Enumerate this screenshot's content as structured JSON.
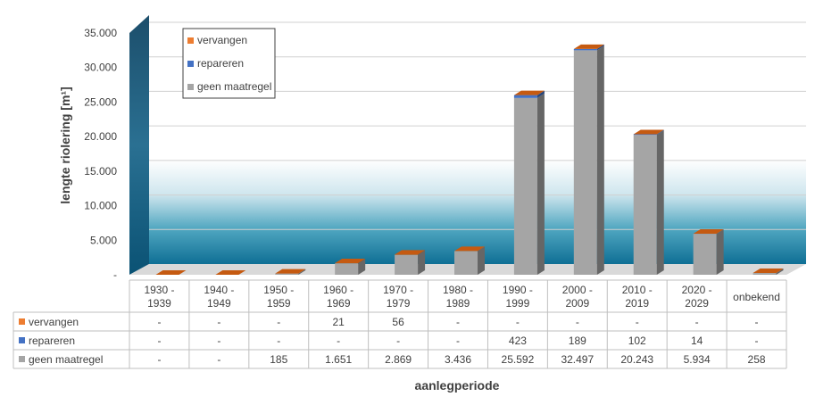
{
  "chart_data": {
    "type": "bar",
    "stacked": true,
    "three_d": true,
    "categories": [
      "1930 -\n1939",
      "1940 -\n1949",
      "1950 -\n1959",
      "1960 -\n1969",
      "1970 -\n1979",
      "1980 -\n1989",
      "1990 -\n1999",
      "2000 -\n2009",
      "2010 -\n2019",
      "2020 -\n2029",
      "onbekend"
    ],
    "series": [
      {
        "name": "vervangen",
        "color": "#ED7D31",
        "values": [
          null,
          null,
          null,
          21,
          56,
          null,
          null,
          null,
          null,
          null,
          null
        ],
        "labels": [
          "-",
          "-",
          "-",
          "21",
          "56",
          "-",
          "-",
          "-",
          "-",
          "-",
          "-"
        ]
      },
      {
        "name": "repareren",
        "color": "#4472C4",
        "values": [
          null,
          null,
          null,
          null,
          null,
          null,
          423,
          189,
          102,
          14,
          null
        ],
        "labels": [
          "-",
          "-",
          "-",
          "-",
          "-",
          "-",
          "423",
          "189",
          "102",
          "14",
          "-"
        ]
      },
      {
        "name": "geen maatregel",
        "color": "#A5A5A5",
        "values": [
          null,
          null,
          185,
          1651,
          2869,
          3436,
          25592,
          32497,
          20243,
          5934,
          258
        ],
        "labels": [
          "-",
          "-",
          "185",
          "1.651",
          "2.869",
          "3.436",
          "25.592",
          "32.497",
          "20.243",
          "5.934",
          "258"
        ]
      }
    ],
    "ylabel": "lengte riolering [m¹]",
    "xlabel": "aanlegperiode",
    "ylim": [
      0,
      35000
    ],
    "yticks": [
      0,
      5000,
      10000,
      15000,
      20000,
      25000,
      30000,
      35000
    ],
    "ytick_labels": [
      "-",
      "5.000",
      "10.000",
      "15.000",
      "20.000",
      "25.000",
      "30.000",
      "35.000"
    ],
    "grid": true,
    "legend_position": "top-left",
    "data_table": true
  }
}
